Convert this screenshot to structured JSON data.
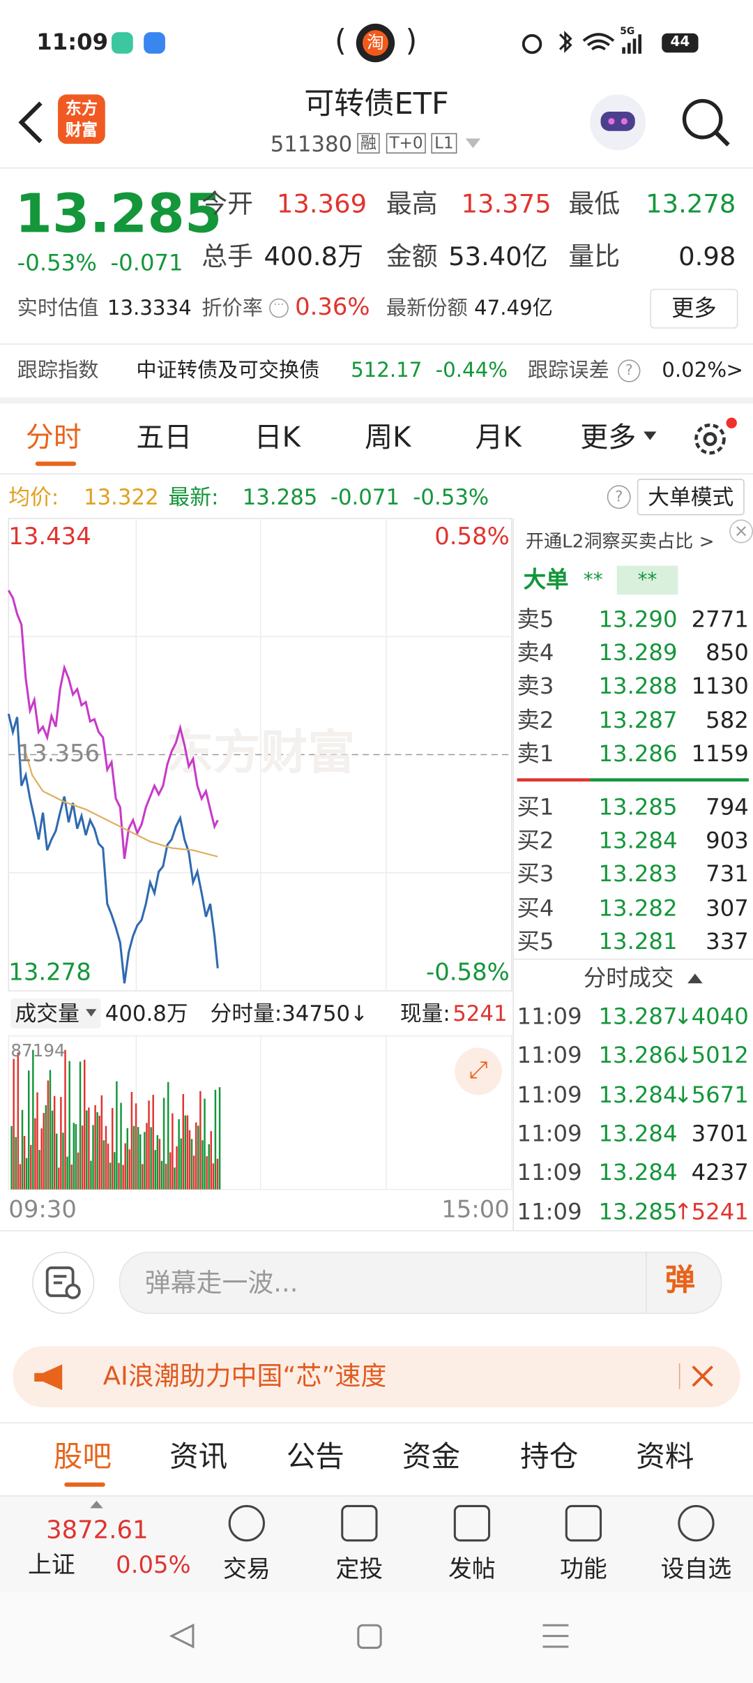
{
  "status_bar": {
    "time": "11:09",
    "shop_icon": "淘",
    "network": "5G",
    "battery": "44"
  },
  "header": {
    "logo": "东方财富",
    "title": "可转债ETF",
    "code": "511380",
    "tags": [
      "融",
      "T+0",
      "L1"
    ]
  },
  "quote": {
    "price": "13.285",
    "change_pct": "-0.53%",
    "change": "-0.071",
    "fields": [
      {
        "label": "今开",
        "value": "13.369"
      },
      {
        "label": "最高",
        "value": "13.375"
      },
      {
        "label": "最低",
        "value": "13.278"
      },
      {
        "label": "总手",
        "value": "400.8万"
      },
      {
        "label": "金额",
        "value": "53.40亿"
      },
      {
        "label": "量比",
        "value": "0.98"
      }
    ],
    "estimate_label": "实时估值",
    "estimate_value": "13.3334",
    "premium_label": "折价率",
    "premium_value": "0.36%",
    "shares_label": "最新份额",
    "shares_value": "47.49亿",
    "more": "更多"
  },
  "tracking": {
    "label": "跟踪指数",
    "index": "中证转债及可交换债",
    "value": "512.17",
    "change": "-0.44%",
    "error_label": "跟踪误差",
    "error_value": "0.02%",
    "arrow": ">"
  },
  "tabs": [
    "分时",
    "五日",
    "日K",
    "周K",
    "月K",
    "更多"
  ],
  "intraday": {
    "avg_label": "均价:",
    "avg": "13.322",
    "latest_label": "最新:",
    "latest": "13.285",
    "change": "-0.071",
    "change_pct": "-0.53%",
    "mode": "大单模式",
    "high": "13.434",
    "high_pct": "0.58%",
    "mid": "13.356",
    "low": "13.278",
    "low_pct": "-0.58%",
    "watermark": "东方财富",
    "volume_label": "成交量",
    "volume": "400.8万",
    "period_volume": "分时量:34750↓",
    "current_volume_label": "现量:",
    "current_volume": "5241",
    "volume_max": "87194",
    "start": "09:30",
    "end": "15:00"
  },
  "orderbook": {
    "promo": "开通L2洞察买卖占比 >",
    "big_label": "大单",
    "big_value": "**",
    "big_value_2": "**",
    "asks": [
      {
        "label": "卖5",
        "price": "13.290",
        "volume": "2771"
      },
      {
        "label": "卖4",
        "price": "13.289",
        "volume": "850"
      },
      {
        "label": "卖3",
        "price": "13.288",
        "volume": "1130"
      },
      {
        "label": "卖2",
        "price": "13.287",
        "volume": "582"
      },
      {
        "label": "卖1",
        "price": "13.286",
        "volume": "1159"
      }
    ],
    "bids": [
      {
        "label": "买1",
        "price": "13.285",
        "volume": "794"
      },
      {
        "label": "买2",
        "price": "13.284",
        "volume": "903"
      },
      {
        "label": "买3",
        "price": "13.283",
        "volume": "731"
      },
      {
        "label": "买4",
        "price": "13.282",
        "volume": "307"
      },
      {
        "label": "买5",
        "price": "13.281",
        "volume": "337"
      }
    ],
    "trades_title": "分时成交",
    "trades": [
      {
        "time": "11:09",
        "price": "13.287",
        "dir": "↓",
        "volume": "4040"
      },
      {
        "time": "11:09",
        "price": "13.286",
        "dir": "↓",
        "volume": "5012"
      },
      {
        "time": "11:09",
        "price": "13.284",
        "dir": "↓",
        "volume": "5671"
      },
      {
        "time": "11:09",
        "price": "13.284",
        "volume": "3701"
      },
      {
        "time": "11:09",
        "price": "13.284",
        "volume": "4237"
      },
      {
        "time": "11:09",
        "price": "13.285",
        "dir": "↑",
        "volume": "5241"
      }
    ]
  },
  "comment": {
    "placeholder": "弹幕走一波...",
    "button": "弹"
  },
  "banner": {
    "text": "AI浪潮助力中国“芯”速度"
  },
  "subtabs": [
    "股吧",
    "资讯",
    "公告",
    "资金",
    "持仓",
    "资料"
  ],
  "bottom": {
    "index_value": "3872.61",
    "index_name": "上证",
    "index_change": "0.05%",
    "actions": [
      "交易",
      "定投",
      "发帖",
      "功能",
      "设自选"
    ]
  }
}
